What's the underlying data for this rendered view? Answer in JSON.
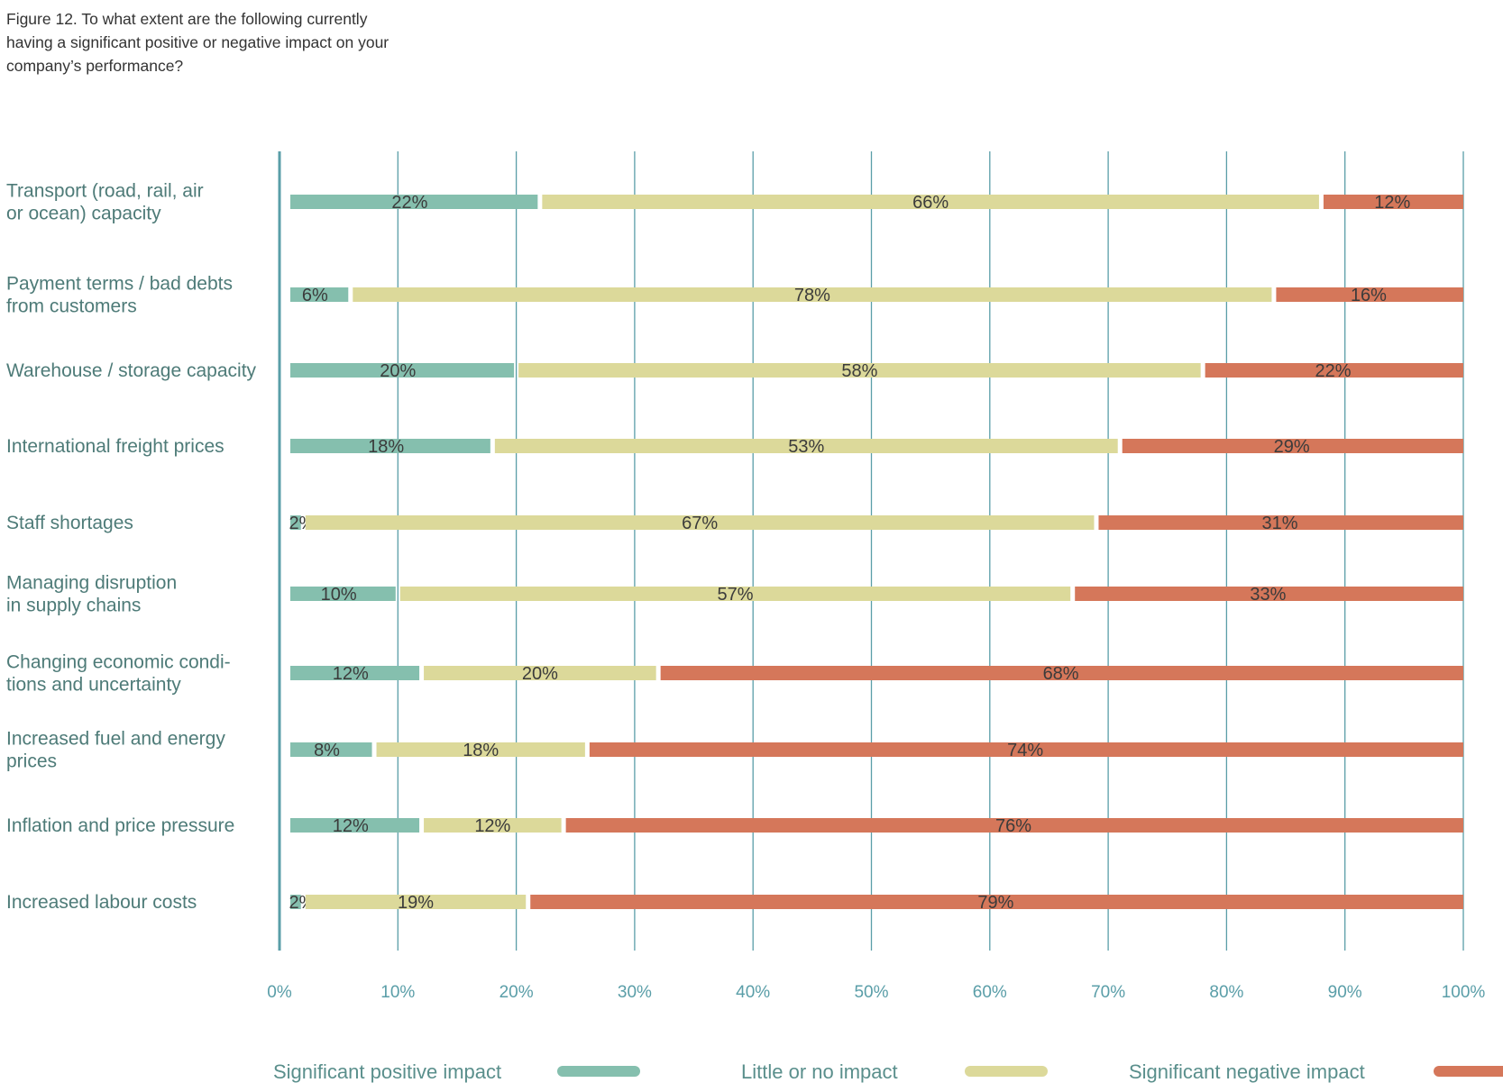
{
  "figure": {
    "title": "Figure 12. To what extent are the following currently having a significant positive or negative impact on your company’s performance?"
  },
  "chart_data": {
    "type": "bar",
    "orientation": "horizontal",
    "stacked": true,
    "title": "Figure 12. To what extent are the following currently having a significant positive or negative impact on your company’s performance?",
    "xlabel": "",
    "ylabel": "",
    "xlim": [
      0,
      100
    ],
    "xticks": [
      "0%",
      "10%",
      "20%",
      "30%",
      "40%",
      "50%",
      "60%",
      "70%",
      "80%",
      "90%",
      "100%"
    ],
    "grid": true,
    "legend_position": "bottom",
    "categories": [
      [
        "Transport (road, rail, air",
        "or ocean) capacity"
      ],
      [
        "Payment terms / bad debts",
        "from customers"
      ],
      [
        "Warehouse / storage capacity"
      ],
      [
        "International freight prices"
      ],
      [
        "Staff shortages"
      ],
      [
        "Managing disruption",
        "in supply chains"
      ],
      [
        "Changing economic condi-",
        "tions and uncertainty"
      ],
      [
        "Increased fuel and energy",
        "prices"
      ],
      [
        "Inflation and price pressure"
      ],
      [
        "Increased labour costs"
      ]
    ],
    "series": [
      {
        "name": "Significant positive impact",
        "color": "#85bfae",
        "values": [
          22,
          6,
          20,
          18,
          2,
          10,
          12,
          8,
          12,
          2
        ]
      },
      {
        "name": "Little or no impact",
        "color": "#dcd99a",
        "values": [
          66,
          78,
          58,
          53,
          67,
          57,
          20,
          18,
          12,
          19
        ]
      },
      {
        "name": "Significant negative impact",
        "color": "#d5775a",
        "values": [
          12,
          16,
          22,
          29,
          31,
          33,
          68,
          74,
          76,
          79
        ]
      }
    ],
    "value_labels": [
      [
        "22%",
        "66%",
        "12%"
      ],
      [
        "6%",
        "78%",
        "16%"
      ],
      [
        "20%",
        "58%",
        "22%"
      ],
      [
        "18%",
        "53%",
        "29%"
      ],
      [
        "2%",
        "67%",
        "31%"
      ],
      [
        "10%",
        "57%",
        "33%"
      ],
      [
        "12%",
        "20%",
        "68%"
      ],
      [
        "8%",
        "18%",
        "74%"
      ],
      [
        "12%",
        "12%",
        "76%"
      ],
      [
        "2%",
        "19%",
        "79%"
      ]
    ],
    "colors": {
      "axis": "#5a9ea8",
      "grid": "#5a9ea8"
    }
  }
}
